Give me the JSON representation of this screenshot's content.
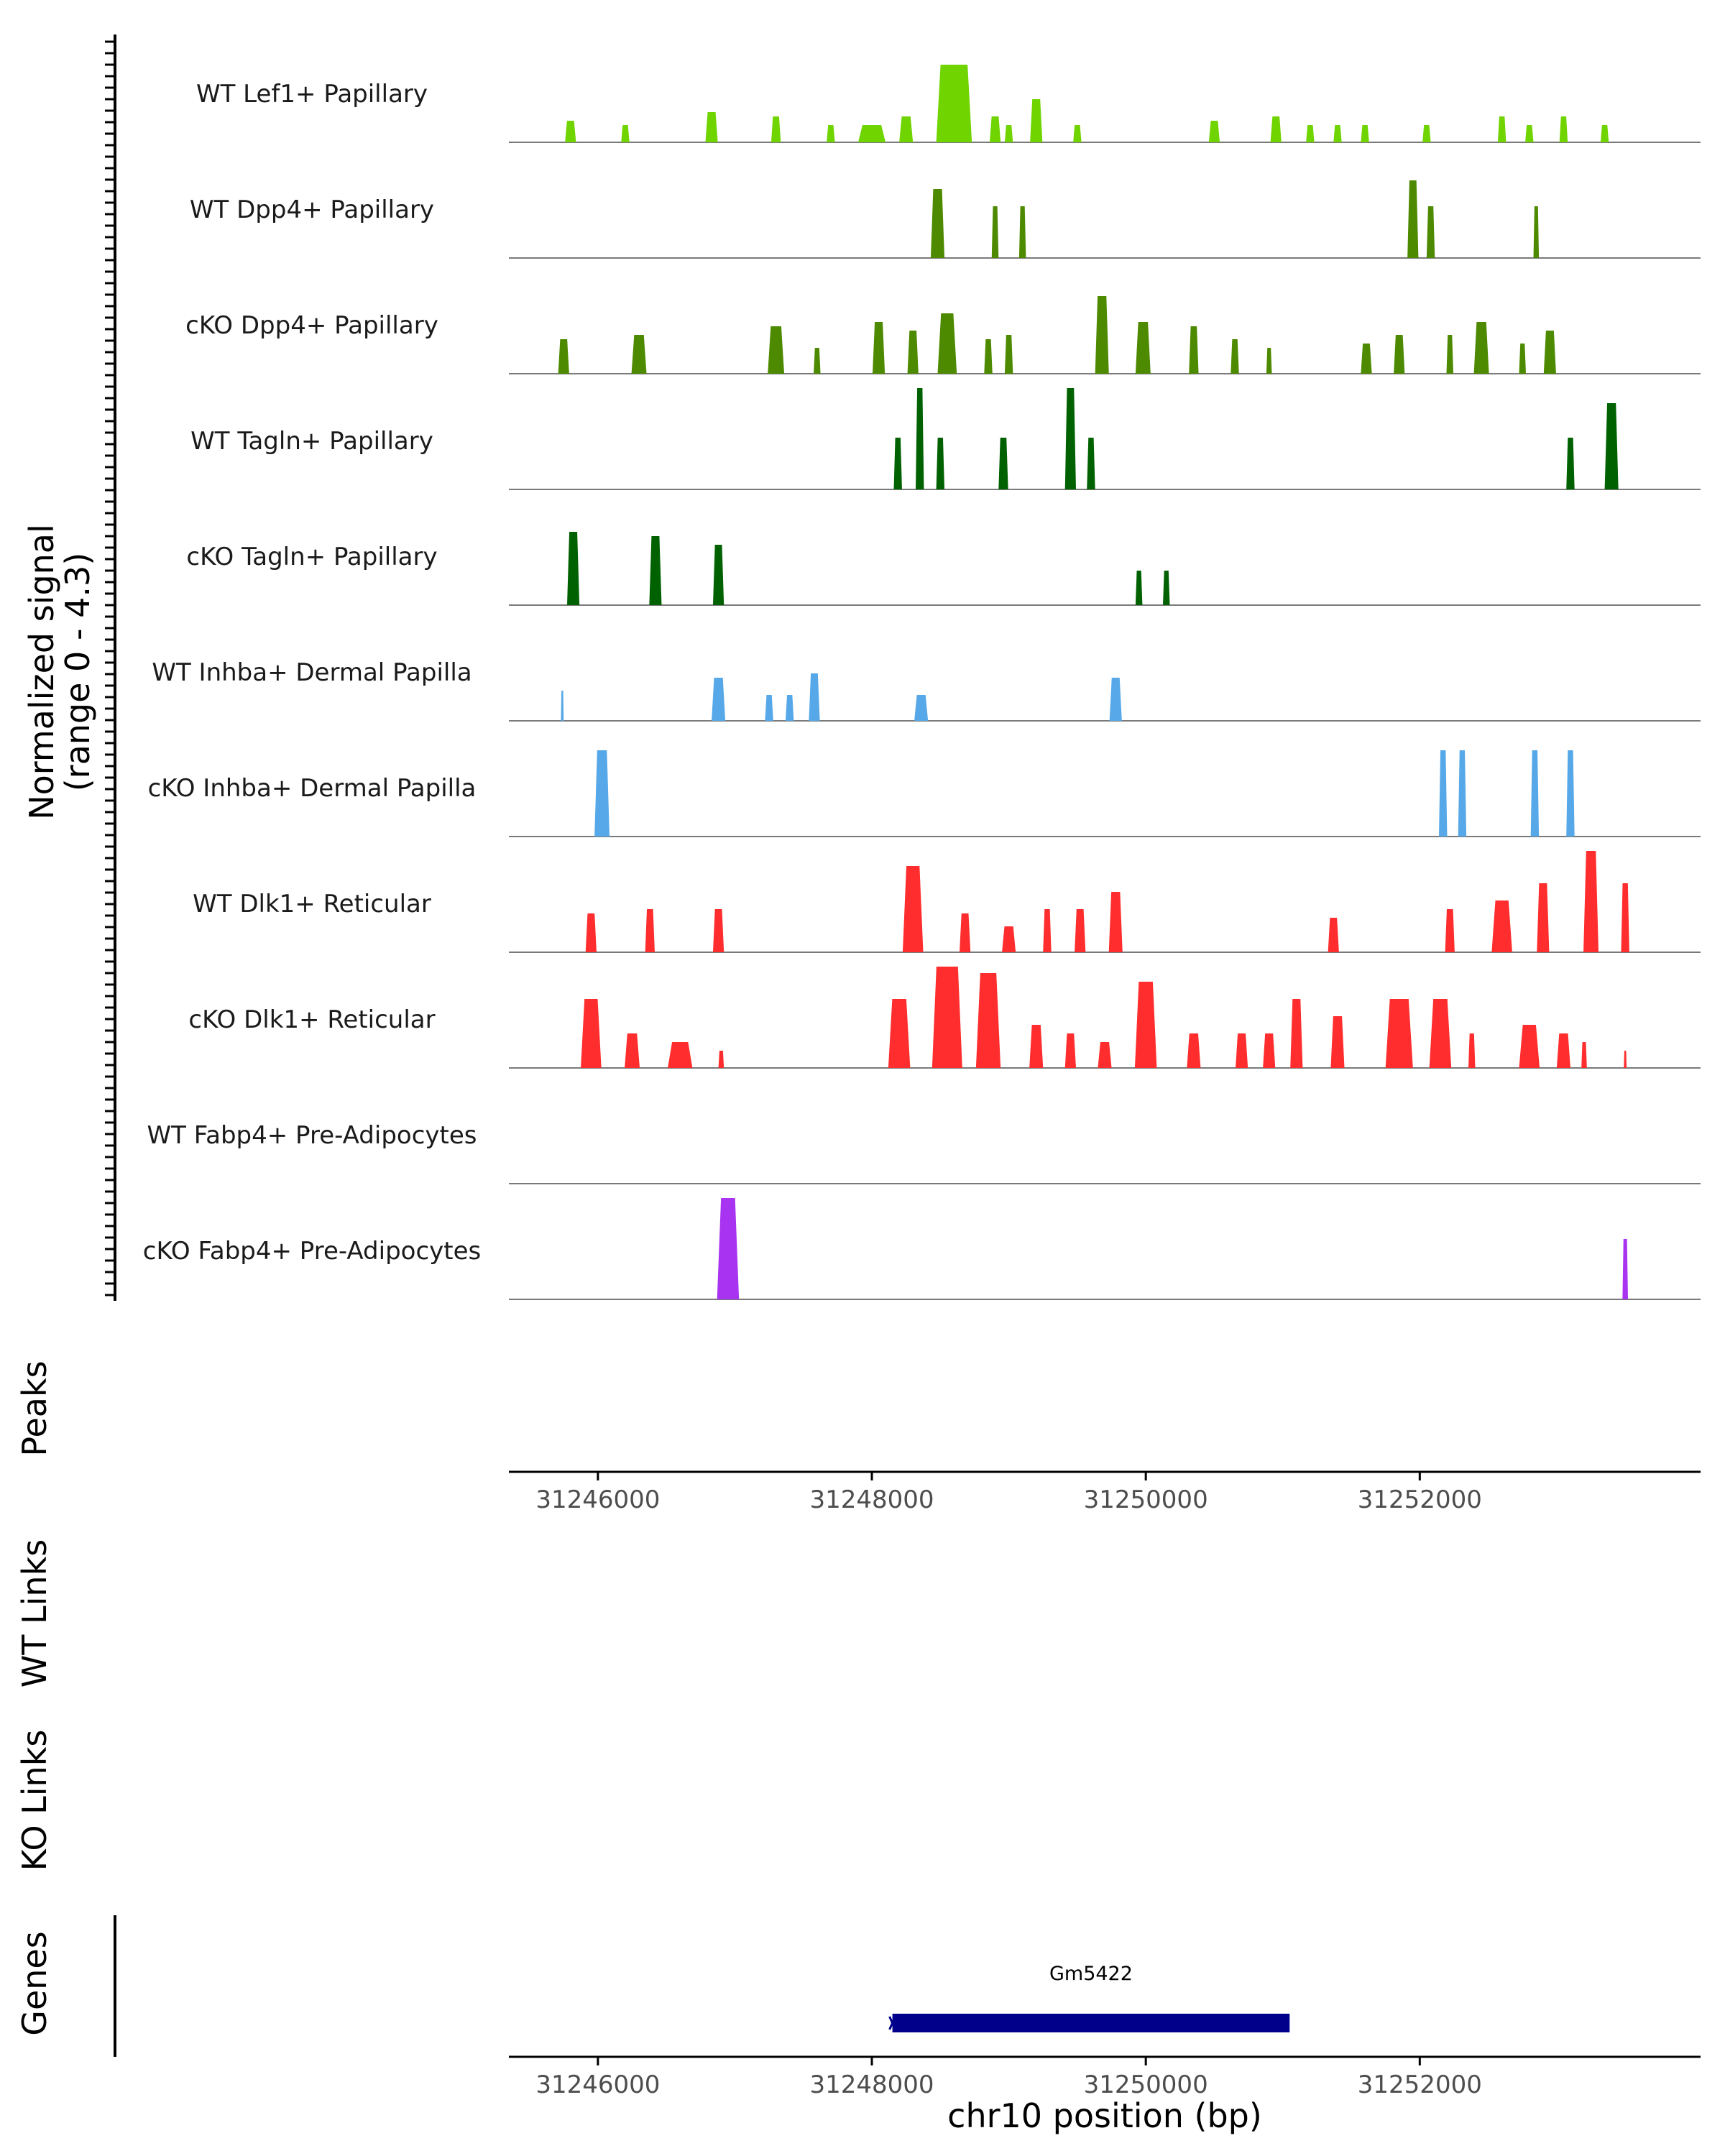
{
  "chart_data": {
    "type": "area",
    "title": "",
    "y_axis_label": "Normalized signal",
    "y_axis_sublabel": "(range 0 - 4.3)",
    "y_range": [
      0,
      4.3
    ],
    "x_range": [
      31245350,
      31254050
    ],
    "x_ticks": [
      31246000,
      31248000,
      31250000,
      31252000
    ],
    "x_tick_labels": [
      "31246000",
      "31248000",
      "31250000",
      "31252000"
    ],
    "xlabel": "chr10 position (bp)",
    "tracks": [
      {
        "name": "WT Lef1+ Papillary",
        "color": "#6FD400",
        "peaks": [
          [
            31245800,
            80,
            0.25
          ],
          [
            31246200,
            60,
            0.2
          ],
          [
            31246830,
            90,
            0.35
          ],
          [
            31247300,
            70,
            0.3
          ],
          [
            31247700,
            60,
            0.2
          ],
          [
            31248000,
            200,
            0.2
          ],
          [
            31248250,
            100,
            0.3
          ],
          [
            31248600,
            260,
            0.9
          ],
          [
            31248900,
            80,
            0.3
          ],
          [
            31249000,
            60,
            0.2
          ],
          [
            31249200,
            90,
            0.5
          ],
          [
            31249500,
            60,
            0.2
          ],
          [
            31250500,
            80,
            0.25
          ],
          [
            31250950,
            80,
            0.3
          ],
          [
            31251200,
            60,
            0.2
          ],
          [
            31251400,
            60,
            0.2
          ],
          [
            31251600,
            60,
            0.2
          ],
          [
            31252050,
            60,
            0.2
          ],
          [
            31252600,
            60,
            0.3
          ],
          [
            31252800,
            60,
            0.2
          ],
          [
            31253050,
            60,
            0.3
          ],
          [
            31253350,
            60,
            0.2
          ]
        ]
      },
      {
        "name": "WT Dpp4+ Papillary",
        "color": "#4D8A00",
        "peaks": [
          [
            31248480,
            100,
            0.8
          ],
          [
            31248900,
            50,
            0.6
          ],
          [
            31249100,
            50,
            0.6
          ],
          [
            31251950,
            80,
            0.9
          ],
          [
            31252080,
            60,
            0.6
          ],
          [
            31252850,
            40,
            0.6
          ]
        ]
      },
      {
        "name": "cKO Dpp4+ Papillary",
        "color": "#4D8A00",
        "peaks": [
          [
            31245750,
            80,
            0.4
          ],
          [
            31246300,
            110,
            0.45
          ],
          [
            31247300,
            120,
            0.55
          ],
          [
            31247600,
            50,
            0.3
          ],
          [
            31248050,
            90,
            0.6
          ],
          [
            31248300,
            80,
            0.5
          ],
          [
            31248550,
            140,
            0.7
          ],
          [
            31248850,
            60,
            0.4
          ],
          [
            31249000,
            60,
            0.45
          ],
          [
            31249680,
            100,
            0.9
          ],
          [
            31249980,
            110,
            0.6
          ],
          [
            31250350,
            70,
            0.55
          ],
          [
            31250650,
            60,
            0.4
          ],
          [
            31250900,
            40,
            0.3
          ],
          [
            31251610,
            80,
            0.35
          ],
          [
            31251850,
            80,
            0.45
          ],
          [
            31252220,
            50,
            0.45
          ],
          [
            31252450,
            110,
            0.6
          ],
          [
            31252750,
            50,
            0.35
          ],
          [
            31252950,
            90,
            0.5
          ]
        ]
      },
      {
        "name": "WT Tagln+ Papillary",
        "color": "#006100",
        "peaks": [
          [
            31248190,
            60,
            0.6
          ],
          [
            31248350,
            60,
            1.2
          ],
          [
            31248500,
            60,
            0.6
          ],
          [
            31248960,
            70,
            0.6
          ],
          [
            31249450,
            80,
            1.2
          ],
          [
            31249600,
            60,
            0.6
          ],
          [
            31253100,
            60,
            0.6
          ],
          [
            31253400,
            100,
            1.0
          ]
        ]
      },
      {
        "name": "cKO Tagln+ Papillary",
        "color": "#006100",
        "peaks": [
          [
            31245820,
            90,
            0.85
          ],
          [
            31246420,
            90,
            0.8
          ],
          [
            31246880,
            80,
            0.7
          ],
          [
            31249950,
            50,
            0.4
          ],
          [
            31250150,
            50,
            0.4
          ]
        ]
      },
      {
        "name": "WT Inhba+ Dermal Papilla",
        "color": "#56A8E8",
        "peaks": [
          [
            31245740,
            20,
            0.35
          ],
          [
            31246880,
            100,
            0.5
          ],
          [
            31247250,
            60,
            0.3
          ],
          [
            31247400,
            60,
            0.3
          ],
          [
            31247580,
            80,
            0.55
          ],
          [
            31248360,
            100,
            0.3
          ],
          [
            31249780,
            90,
            0.5
          ]
        ]
      },
      {
        "name": "cKO Inhba+ Dermal Papilla",
        "color": "#56A8E8",
        "peaks": [
          [
            31246030,
            110,
            1.0
          ],
          [
            31252170,
            60,
            1.0
          ],
          [
            31252310,
            60,
            1.0
          ],
          [
            31252840,
            60,
            1.0
          ],
          [
            31253100,
            60,
            1.0
          ]
        ]
      },
      {
        "name": "WT Dlk1+ Reticular",
        "color": "#FF2D2D",
        "peaks": [
          [
            31245950,
            80,
            0.45
          ],
          [
            31246380,
            70,
            0.5
          ],
          [
            31246880,
            80,
            0.5
          ],
          [
            31248300,
            150,
            1.0
          ],
          [
            31248680,
            80,
            0.45
          ],
          [
            31249000,
            100,
            0.3
          ],
          [
            31249280,
            60,
            0.5
          ],
          [
            31249520,
            80,
            0.5
          ],
          [
            31249780,
            100,
            0.7
          ],
          [
            31251370,
            80,
            0.4
          ],
          [
            31252220,
            70,
            0.5
          ],
          [
            31252600,
            150,
            0.6
          ],
          [
            31252900,
            90,
            0.8
          ],
          [
            31253250,
            110,
            1.3
          ],
          [
            31253500,
            60,
            0.8
          ]
        ]
      },
      {
        "name": "cKO Dlk1+ Reticular",
        "color": "#FF2D2D",
        "peaks": [
          [
            31245950,
            150,
            0.8
          ],
          [
            31246250,
            110,
            0.4
          ],
          [
            31246600,
            180,
            0.3
          ],
          [
            31246900,
            40,
            0.2
          ],
          [
            31248200,
            160,
            0.8
          ],
          [
            31248550,
            220,
            1.2
          ],
          [
            31248850,
            180,
            1.1
          ],
          [
            31249200,
            100,
            0.5
          ],
          [
            31249450,
            80,
            0.4
          ],
          [
            31249700,
            100,
            0.3
          ],
          [
            31250000,
            160,
            1.0
          ],
          [
            31250350,
            100,
            0.4
          ],
          [
            31250700,
            90,
            0.4
          ],
          [
            31250900,
            90,
            0.4
          ],
          [
            31251100,
            90,
            0.8
          ],
          [
            31251400,
            100,
            0.6
          ],
          [
            31251850,
            200,
            0.8
          ],
          [
            31252150,
            160,
            0.8
          ],
          [
            31252380,
            50,
            0.4
          ],
          [
            31252800,
            150,
            0.5
          ],
          [
            31253050,
            100,
            0.4
          ],
          [
            31253200,
            40,
            0.3
          ],
          [
            31253500,
            20,
            0.2
          ]
        ]
      },
      {
        "name": "WT Fabp4+ Pre-Adipocytes",
        "color": "#A833F0",
        "peaks": []
      },
      {
        "name": "cKO Fabp4+ Pre-Adipocytes",
        "color": "#A833F0",
        "peaks": [
          [
            31246950,
            160,
            2.0
          ],
          [
            31253500,
            40,
            0.7
          ]
        ]
      }
    ],
    "panels": {
      "peaks_label": "Peaks",
      "wt_links_label": "WT Links",
      "ko_links_label": "KO Links",
      "genes_label": "Genes"
    },
    "genes": [
      {
        "name": "Gm5422",
        "start": 31248150,
        "end": 31251050,
        "strand": "-",
        "color": "#00008B"
      }
    ]
  }
}
